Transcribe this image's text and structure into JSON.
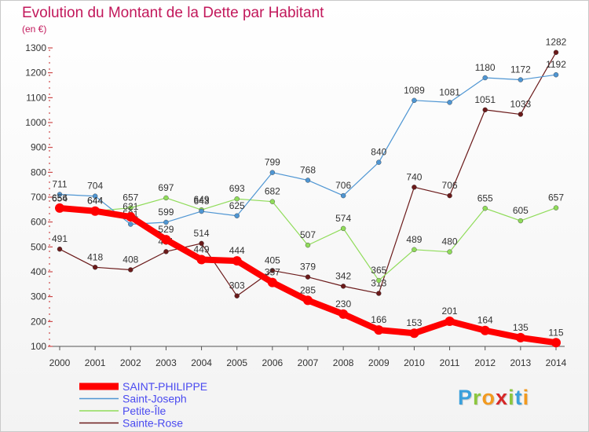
{
  "header": {
    "title": "Evolution du Montant de la Dette par Habitant",
    "unit": "(en €)"
  },
  "logo": {
    "text": "Proxiti",
    "letters": [
      {
        "ch": "P",
        "color": "#3aa0dc"
      },
      {
        "ch": "r",
        "color": "#8cc63e"
      },
      {
        "ch": "o",
        "color": "#f29a1f"
      },
      {
        "ch": "x",
        "color": "#d62828"
      },
      {
        "ch": "i",
        "color": "#8cc63e"
      },
      {
        "ch": "t",
        "color": "#3aa0dc"
      },
      {
        "ch": "i",
        "color": "#f29a1f"
      }
    ]
  },
  "chart_data": {
    "type": "line",
    "title": "Evolution du Montant de la Dette par Habitant",
    "ylabel": "(en €)",
    "xlabel": "",
    "ylim": [
      100,
      1300
    ],
    "yticks": [
      100,
      200,
      300,
      400,
      500,
      600,
      700,
      800,
      900,
      1000,
      1100,
      1200,
      1300
    ],
    "x": [
      "2000",
      "2001",
      "2002",
      "2003",
      "2004",
      "2005",
      "2006",
      "2007",
      "2008",
      "2009",
      "2010",
      "2011",
      "2012",
      "2013",
      "2014"
    ],
    "grid": false,
    "legend_position": "bottom-left",
    "series": [
      {
        "name": "Sainte-Rose",
        "color": "#6b1a1a",
        "values": [
          491,
          418,
          408,
          481,
          514,
          303,
          405,
          379,
          342,
          313,
          740,
          706,
          1051,
          1033,
          1282
        ]
      },
      {
        "name": "Petite-Île",
        "color": "#90dc5a",
        "values": [
          654,
          644,
          657,
          697,
          649,
          693,
          682,
          507,
          574,
          365,
          489,
          480,
          655,
          605,
          657
        ]
      },
      {
        "name": "Saint-Joseph",
        "color": "#4f96d3",
        "values": [
          711,
          704,
          591,
          599,
          643,
          625,
          799,
          768,
          706,
          840,
          1089,
          1081,
          1180,
          1172,
          1192
        ]
      },
      {
        "name": "SAINT-PHILIPPE",
        "color": "#ff0000",
        "highlight": true,
        "values": [
          656,
          644,
          621,
          529,
          449,
          444,
          357,
          285,
          230,
          166,
          153,
          201,
          164,
          135,
          115
        ]
      }
    ],
    "legend_order": [
      "SAINT-PHILIPPE",
      "Saint-Joseph",
      "Petite-Île",
      "Sainte-Rose"
    ]
  }
}
